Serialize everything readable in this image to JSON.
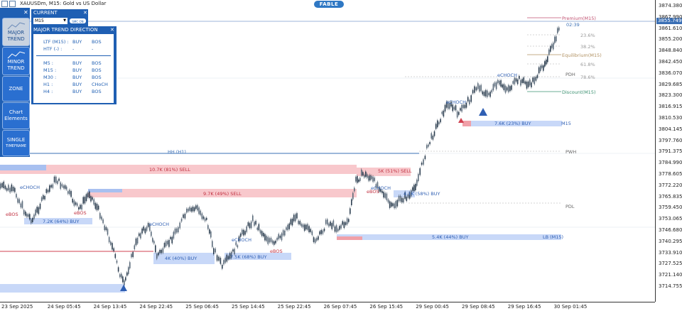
{
  "window": {
    "title": "XAUUSDm, M15:  Gold vs US Dollar",
    "brand": "FABLE"
  },
  "colors": {
    "panel_blue": "#1f5fb3",
    "bull": "#2c3e50",
    "supply_zone": "#f8c8cc",
    "demand_zone": "#c8d8f8",
    "level_blue": "#3a6fb5",
    "level_red": "#d04050"
  },
  "side_panel": {
    "close_label": "✕",
    "buttons": [
      {
        "label": "MAJOR",
        "label2": "TREND",
        "icon": "trend-chart-icon",
        "active": true
      },
      {
        "label": "MINOR",
        "label2": "TREND",
        "icon": "trend-chart-icon",
        "active": false
      },
      {
        "label": "ZONE",
        "label2": "",
        "active": false
      },
      {
        "label": "Chart",
        "label2": "Elements",
        "active": false
      },
      {
        "label": "SINGLE",
        "label2": "TIMEFRAME",
        "active": false
      }
    ]
  },
  "timeframe_panel": {
    "title": "CURRENT",
    "close_label": "✕",
    "selected": "M15",
    "toggle_label": "SMC ON"
  },
  "trend_panel": {
    "title": "MAJOR TREND DIRECTION",
    "close_label": "✕",
    "top_rows": [
      {
        "tf": "LTF (M15) :",
        "dir": "BUY",
        "type": "BOS"
      },
      {
        "tf": "HTF (-) :",
        "dir": "-",
        "type": "-"
      }
    ],
    "rows": [
      {
        "tf": "M5 :",
        "dir": "BUY",
        "type": "BOS"
      },
      {
        "tf": "M15 :",
        "dir": "BUY",
        "type": "BOS"
      },
      {
        "tf": "M30 :",
        "dir": "BUY",
        "type": "BOS"
      },
      {
        "tf": "H1 :",
        "dir": "BUY",
        "type": "CHoCH"
      },
      {
        "tf": "H4 :",
        "dir": "BUY",
        "type": "BOS"
      }
    ]
  },
  "price_axis": {
    "current_price": "3855.749",
    "labels": [
      "3874.380",
      "3867.990",
      "3861.610",
      "3855.200",
      "3848.840",
      "3842.450",
      "3836.070",
      "3829.685",
      "3823.300",
      "3816.915",
      "3810.530",
      "3804.145",
      "3797.760",
      "3791.375",
      "3784.990",
      "3778.605",
      "3772.220",
      "3765.835",
      "3759.450",
      "3753.065",
      "3746.680",
      "3740.295",
      "3733.910",
      "3727.525",
      "3721.140",
      "3714.755"
    ]
  },
  "time_axis": {
    "labels": [
      "23 Sep 2025",
      "24 Sep 05:45",
      "24 Sep 13:45",
      "24 Sep 22:45",
      "25 Sep 06:45",
      "25 Sep 14:45",
      "25 Sep 22:45",
      "26 Sep 07:45",
      "26 Sep 15:45",
      "29 Sep 00:45",
      "29 Sep 08:45",
      "29 Sep 16:45",
      "30 Sep 01:45"
    ]
  },
  "annotations": {
    "premium": "Premium(M15)",
    "timer": "02:39",
    "fib_236": "23.6%",
    "fib_382": "38.2%",
    "equilibrium": "Equilibrium(M15)",
    "fib_618": "61.8%",
    "fib_786": "78.6%",
    "discount": "Discount(M15)",
    "pdh": "PDH",
    "pwh": "PWH",
    "pdl": "PDL",
    "hh_h1": "HH (H1)",
    "sell_zone_1": "10.7K (81%) SELL",
    "sell_zone_2": "9.7K (49%) SELL",
    "sell_zone_3": "5K (51%) SELL",
    "buy_zone_1": "7.6K (23%) BUY",
    "buy_zone_2": "7.2K (64%) BUY",
    "buy_zone_3": "4K (40%) BUY",
    "buy_zone_4": "7.5K (68%) BUY",
    "buy_zone_5": "5.4K (44%) BUY",
    "buy_zone_6": "4.1K (58%) BUY",
    "lb_m15": "LB (M15)",
    "choch": "eCHOCH",
    "bos": "eBOS",
    "m15_tag": "M15"
  }
}
